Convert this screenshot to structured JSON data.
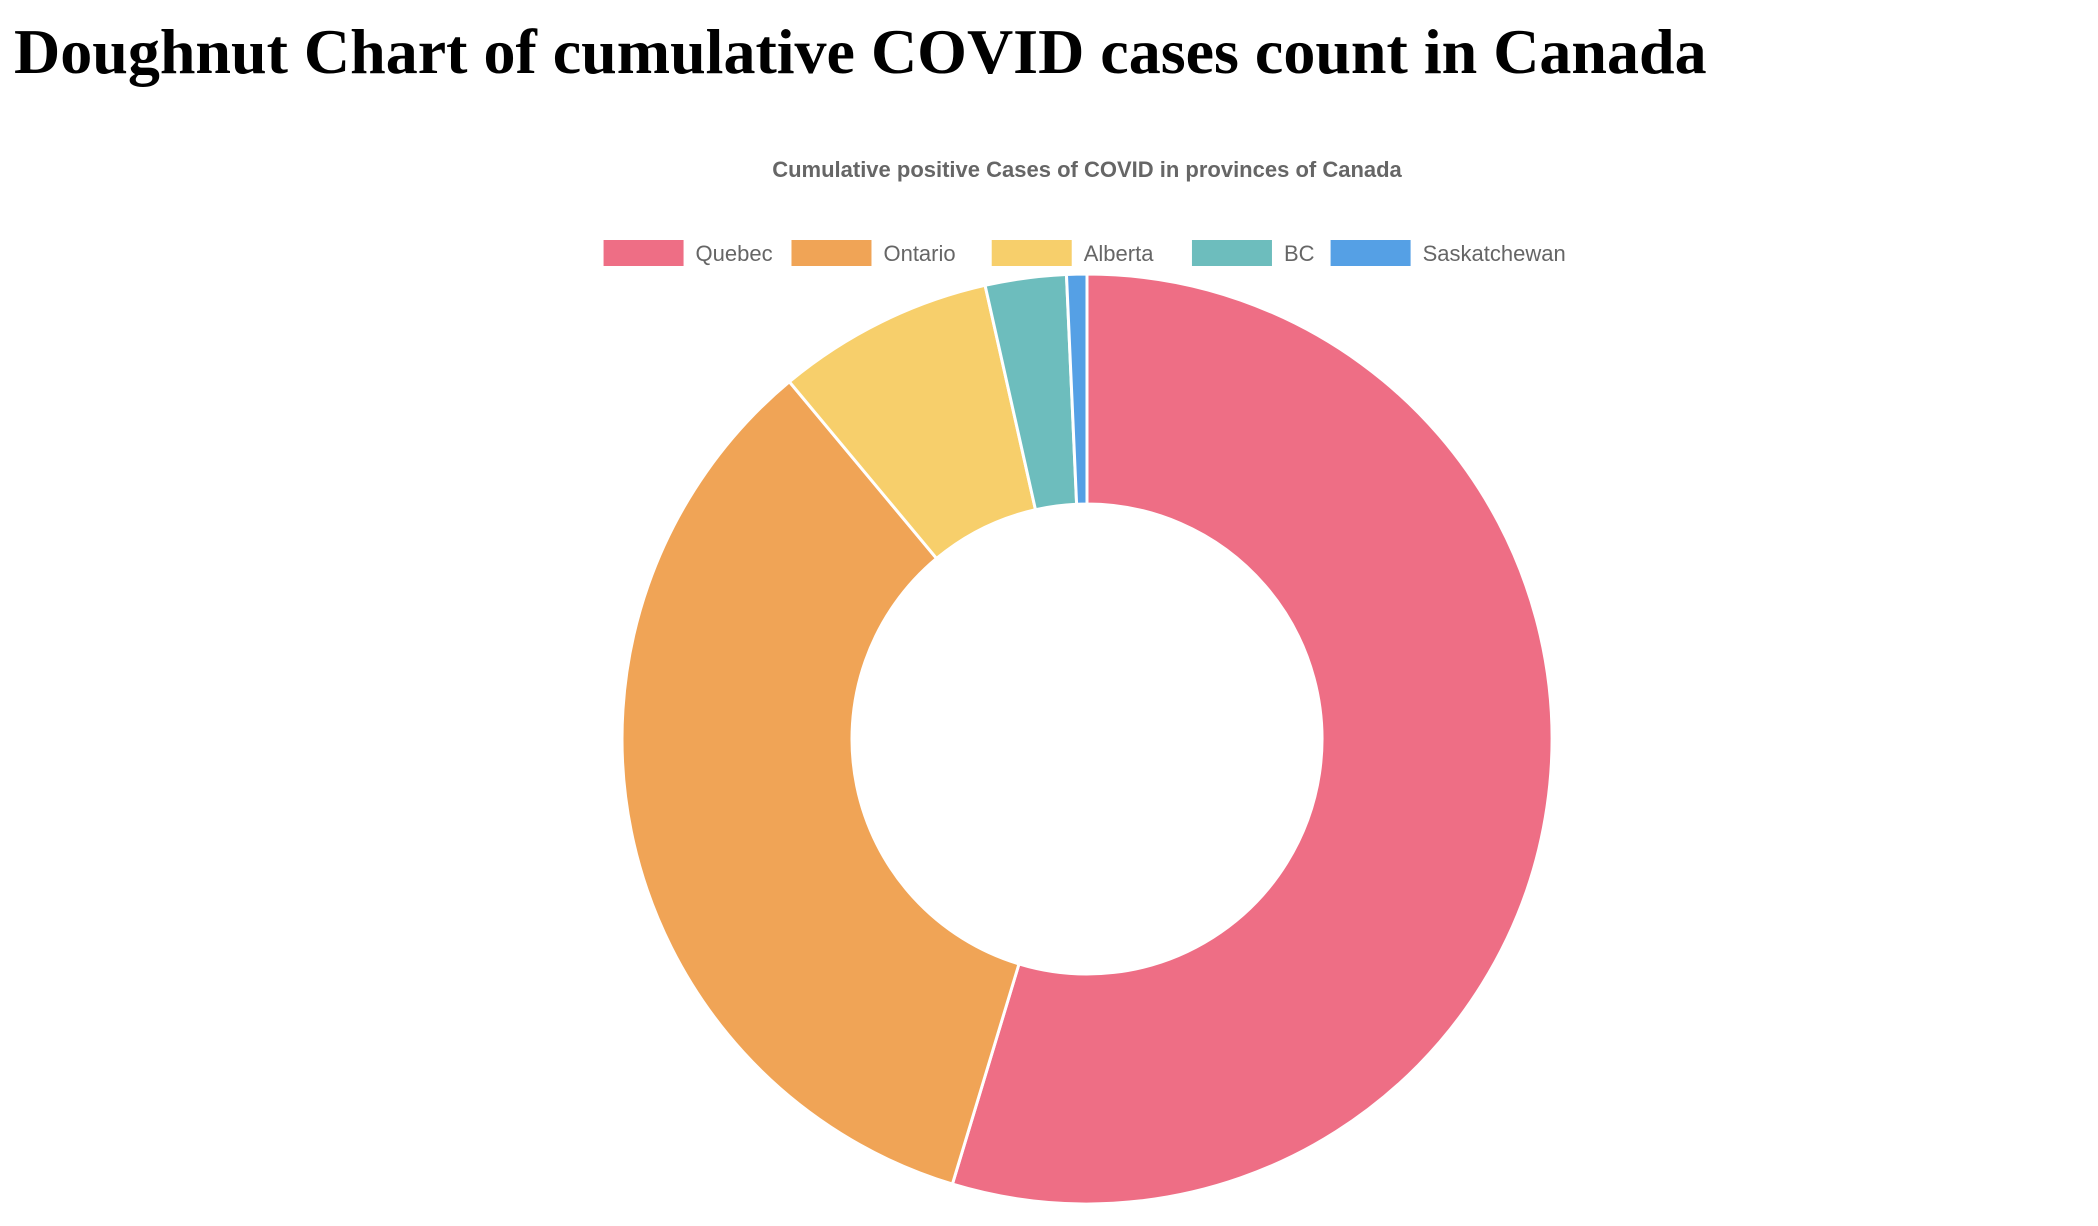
{
  "page": {
    "heading": "Doughnut Chart of cumulative COVID cases count in Canada"
  },
  "chart_data": {
    "type": "pie",
    "variant": "doughnut",
    "title": "Cumulative positive Cases of COVID in provinces of Canada",
    "legend_position": "top",
    "categories": [
      "Quebec",
      "Ontario",
      "Alberta",
      "BC",
      "Saskatchewan"
    ],
    "values": [
      54.4,
      34.1,
      7.5,
      2.8,
      0.7
    ],
    "colors": [
      "#ee6e85",
      "#f0a456",
      "#f7cf6b",
      "#6dbdbd",
      "#55a0e5"
    ],
    "border_color": "#ffffff"
  }
}
